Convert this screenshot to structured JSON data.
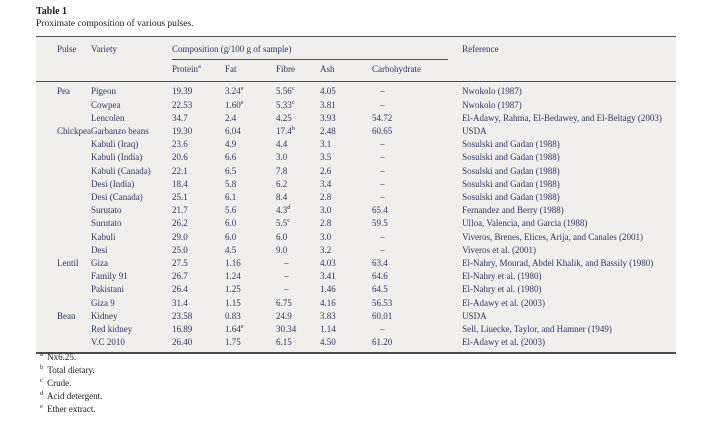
{
  "caption": {
    "label": "Table 1",
    "title": "Proximate composition of various pulses."
  },
  "colors": {
    "table_bg": "#f0efed",
    "table_text": "#2e3560",
    "ink": "#1a1a1a",
    "rule": "#4d4d4d"
  },
  "table": {
    "headers": {
      "pulse": "Pulse",
      "variety": "Variety",
      "composition_group": "Composition (g/100 g of sample)",
      "sub": [
        "Protein^a",
        "Fat",
        "Fibre",
        "Ash",
        "Carbohydrate"
      ],
      "reference": "Reference"
    },
    "rows": [
      {
        "pulse": "Pea",
        "variety": "Pigeon",
        "protein": "19.39",
        "fat": "3.24^e",
        "fibre": "5.56^c",
        "ash": "4.05",
        "carbohydrate": "–",
        "reference": "Nwokolo (1987)"
      },
      {
        "pulse": "",
        "variety": "Cowpea",
        "protein": "22.53",
        "fat": "1.60^e",
        "fibre": "5.33^c",
        "ash": "3.81",
        "carbohydrate": "–",
        "reference": "Nwokolo (1987)"
      },
      {
        "pulse": "",
        "variety": "Lencolen",
        "protein": "34.7",
        "fat": "2.4",
        "fibre": "4.25",
        "ash": "3.93",
        "carbohydrate": "54.72",
        "reference": "El-Adawy, Rahma, El-Bedawey, and El-Beltagy (2003)"
      },
      {
        "pulse": "Chickpea",
        "variety": "Garbanzo beans",
        "protein": "19.30",
        "fat": "6.04",
        "fibre": "17.4^b",
        "ash": "2.48",
        "carbohydrate": "60.65",
        "reference": "USDA"
      },
      {
        "pulse": "",
        "variety": "Kabuli (Iraq)",
        "protein": "23.6",
        "fat": "4.9",
        "fibre": "4.4",
        "ash": "3.1",
        "carbohydrate": "–",
        "reference": "Sosulski and Gadan (1988)"
      },
      {
        "pulse": "",
        "variety": "Kabuli (India)",
        "protein": "20.6",
        "fat": "6.6",
        "fibre": "3.0",
        "ash": "3.5",
        "carbohydrate": "–",
        "reference": "Sosulski and Gadan (1988)"
      },
      {
        "pulse": "",
        "variety": "Kabuli (Canada)",
        "protein": "22.1",
        "fat": "6.5",
        "fibre": "7.8",
        "ash": "2.6",
        "carbohydrate": "–",
        "reference": "Sosulski and Gadan (1988)"
      },
      {
        "pulse": "",
        "variety": "Desi (India)",
        "protein": "18.4",
        "fat": "5.8",
        "fibre": "6.2",
        "ash": "3.4",
        "carbohydrate": "–",
        "reference": "Sosulski and Gadan (1988)"
      },
      {
        "pulse": "",
        "variety": "Desi (Canada)",
        "protein": "25.1",
        "fat": "6.1",
        "fibre": "8.4",
        "ash": "2.8",
        "carbohydrate": "–",
        "reference": "Sosulski and Gadan (1988)"
      },
      {
        "pulse": "",
        "variety": "Surutato",
        "protein": "21.7",
        "fat": "5.6",
        "fibre": "4.3^d",
        "ash": "3.0",
        "carbohydrate": "65.4",
        "reference": "Fernandez and Berry (1988)"
      },
      {
        "pulse": "",
        "variety": "Surutato",
        "protein": "26.2",
        "fat": "6.0",
        "fibre": "5.5^c",
        "ash": "2.8",
        "carbohydrate": "59.5",
        "reference": "Ulloa, Valencia, and Garcia (1988)"
      },
      {
        "pulse": "",
        "variety": "Kabuli",
        "protein": "29.0",
        "fat": "6.0",
        "fibre": "6.0",
        "ash": "3.0",
        "carbohydrate": "–",
        "reference": "Viveros, Brenes, Elices, Arija, and Canales (2001)"
      },
      {
        "pulse": "",
        "variety": "Desi",
        "protein": "25.0",
        "fat": "4.5",
        "fibre": "9.0",
        "ash": "3.2",
        "carbohydrate": "–",
        "reference": "Viveros et al. (2001)"
      },
      {
        "pulse": "Lentil",
        "variety": "Giza",
        "protein": "27.5",
        "fat": "1.16",
        "fibre": "–",
        "ash": "4.03",
        "carbohydrate": "63.4",
        "reference": "El-Nahry, Mourad, Abdel Khalik, and Bassily (1980)"
      },
      {
        "pulse": "",
        "variety": "Family 91",
        "protein": "26.7",
        "fat": "1.24",
        "fibre": "–",
        "ash": "3.41",
        "carbohydrate": "64.6",
        "reference": "El-Nahry et al. (1980)"
      },
      {
        "pulse": "",
        "variety": "Pakistani",
        "protein": "26.4",
        "fat": "1.25",
        "fibre": "–",
        "ash": "1.46",
        "carbohydrate": "64.5",
        "reference": "El-Nahry et al. (1980)"
      },
      {
        "pulse": "",
        "variety": "Giza 9",
        "protein": "31.4",
        "fat": "1.15",
        "fibre": "6.75",
        "ash": "4.16",
        "carbohydrate": "56.53",
        "reference": "El-Adawy et al. (2003)"
      },
      {
        "pulse": "Bean",
        "variety": "Kidney",
        "protein": "23.58",
        "fat": "0.83",
        "fibre": "24.9",
        "ash": "3.83",
        "carbohydrate": "60.01",
        "reference": "USDA"
      },
      {
        "pulse": "",
        "variety": "Red kidney",
        "protein": "16.89",
        "fat": "1.64^e",
        "fibre": "30.34",
        "ash": "1.14",
        "carbohydrate": "–",
        "reference": "Sell, Liuecke, Taylor, and Hamner (1949)"
      },
      {
        "pulse": "",
        "variety": "V.C 2010",
        "protein": "26.40",
        "fat": "1.75",
        "fibre": "6.15",
        "ash": "4.50",
        "carbohydrate": "61.20",
        "reference": "El-Adawy et al. (2003)"
      }
    ],
    "footnotes": [
      {
        "mark": "a",
        "text": "Nx6.25."
      },
      {
        "mark": "b",
        "text": "Total dietary."
      },
      {
        "mark": "c",
        "text": "Crude."
      },
      {
        "mark": "d",
        "text": "Acid detergent."
      },
      {
        "mark": "e",
        "text": "Ether extract."
      }
    ]
  }
}
